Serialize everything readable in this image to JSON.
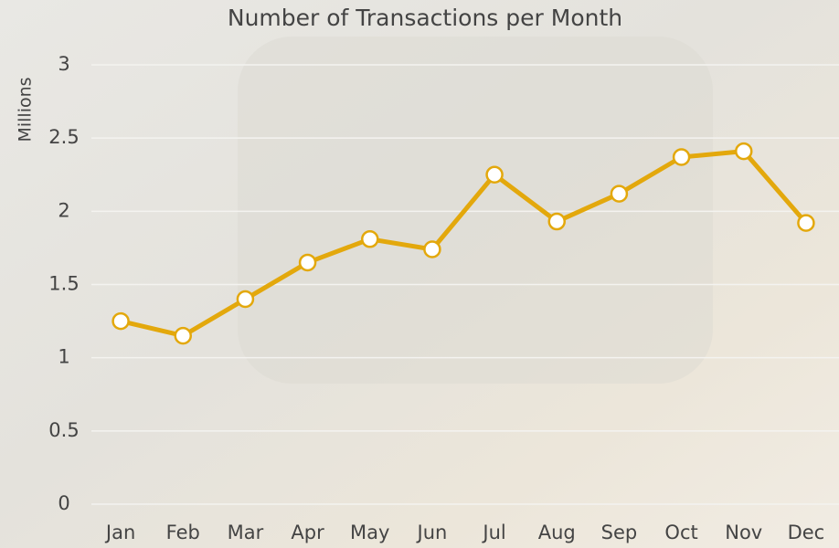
{
  "chart_data": {
    "type": "line",
    "title": "Number of Transactions per Month",
    "y_label": "Millions",
    "categories": [
      "Jan",
      "Feb",
      "Mar",
      "Apr",
      "May",
      "Jun",
      "Jul",
      "Aug",
      "Sep",
      "Oct",
      "Nov",
      "Dec"
    ],
    "values": [
      1.25,
      1.15,
      1.4,
      1.65,
      1.81,
      1.74,
      2.25,
      1.93,
      2.12,
      2.37,
      2.41,
      1.92
    ],
    "color": "#e3a80c",
    "ylim": [
      0,
      3
    ],
    "yticks": [
      0,
      0.5,
      1,
      1.5,
      2,
      2.5,
      3
    ],
    "grid": true
  }
}
